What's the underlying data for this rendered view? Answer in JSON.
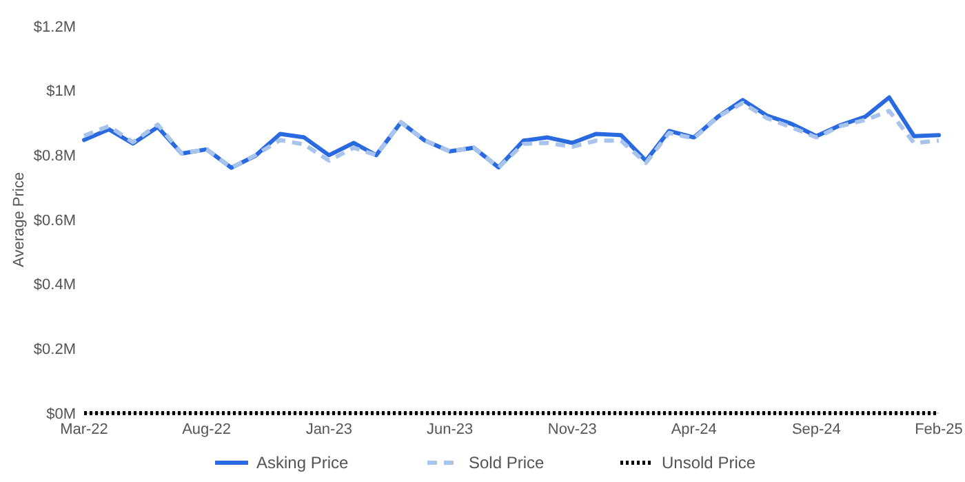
{
  "chart_data": {
    "type": "line",
    "ylabel": "Average Price",
    "x": [
      "2022-03",
      "2022-04",
      "2022-05",
      "2022-06",
      "2022-07",
      "2022-08",
      "2022-09",
      "2022-10",
      "2022-11",
      "2022-12",
      "2023-01",
      "2023-02",
      "2023-03",
      "2023-04",
      "2023-05",
      "2023-06",
      "2023-07",
      "2023-08",
      "2023-09",
      "2023-10",
      "2023-11",
      "2023-12",
      "2024-01",
      "2024-02",
      "2024-03",
      "2024-04",
      "2024-05",
      "2024-06",
      "2024-07",
      "2024-08",
      "2024-09",
      "2024-10",
      "2024-11",
      "2024-12",
      "2025-01",
      "2025-02"
    ],
    "xlim": [
      "2022-03",
      "2025-02"
    ],
    "xticks": [
      {
        "value": "2022-03",
        "label": "Mar-22"
      },
      {
        "value": "2022-08",
        "label": "Aug-22"
      },
      {
        "value": "2023-01",
        "label": "Jan-23"
      },
      {
        "value": "2023-06",
        "label": "Jun-23"
      },
      {
        "value": "2023-11",
        "label": "Nov-23"
      },
      {
        "value": "2024-04",
        "label": "Apr-24"
      },
      {
        "value": "2024-09",
        "label": "Sep-24"
      },
      {
        "value": "2025-02",
        "label": "Feb-25"
      }
    ],
    "ylim": [
      0,
      1.2
    ],
    "yticks": [
      {
        "value": 0,
        "label": "$0M"
      },
      {
        "value": 0.2,
        "label": "$0.2M"
      },
      {
        "value": 0.4,
        "label": "$0.4M"
      },
      {
        "value": 0.6,
        "label": "$0.6M"
      },
      {
        "value": 0.8,
        "label": "$0.8M"
      },
      {
        "value": 1,
        "label": "$1M"
      },
      {
        "value": 1.2,
        "label": "$1.2M"
      }
    ],
    "grid": false,
    "legend": "bottom",
    "marker": "none",
    "series": [
      {
        "name": "Asking Price",
        "color": "#2a6ae0",
        "line_style": "solid",
        "values": [
          0.847,
          0.88,
          0.836,
          0.887,
          0.805,
          0.818,
          0.761,
          0.798,
          0.866,
          0.855,
          0.8,
          0.838,
          0.8,
          0.902,
          0.845,
          0.812,
          0.823,
          0.762,
          0.845,
          0.855,
          0.838,
          0.866,
          0.862,
          0.783,
          0.875,
          0.855,
          0.919,
          0.971,
          0.923,
          0.897,
          0.859,
          0.893,
          0.919,
          0.979,
          0.859,
          0.862
        ]
      },
      {
        "name": "Sold Price",
        "color": "#a8c4ec",
        "line_style": "dashed",
        "values": [
          0.86,
          0.89,
          0.84,
          0.895,
          0.805,
          0.818,
          0.761,
          0.8,
          0.847,
          0.833,
          0.783,
          0.823,
          0.8,
          0.902,
          0.845,
          0.812,
          0.823,
          0.762,
          0.835,
          0.838,
          0.826,
          0.845,
          0.845,
          0.776,
          0.869,
          0.852,
          0.919,
          0.962,
          0.915,
          0.886,
          0.855,
          0.89,
          0.909,
          0.937,
          0.838,
          0.845
        ]
      },
      {
        "name": "Unsold Price",
        "color": "#000000",
        "line_style": "dotted",
        "values": [
          0,
          0,
          0,
          0,
          0,
          0,
          0,
          0,
          0,
          0,
          0,
          0,
          0,
          0,
          0,
          0,
          0,
          0,
          0,
          0,
          0,
          0,
          0,
          0,
          0,
          0,
          0,
          0,
          0,
          0,
          0,
          0,
          0,
          0,
          0,
          0
        ]
      }
    ]
  }
}
